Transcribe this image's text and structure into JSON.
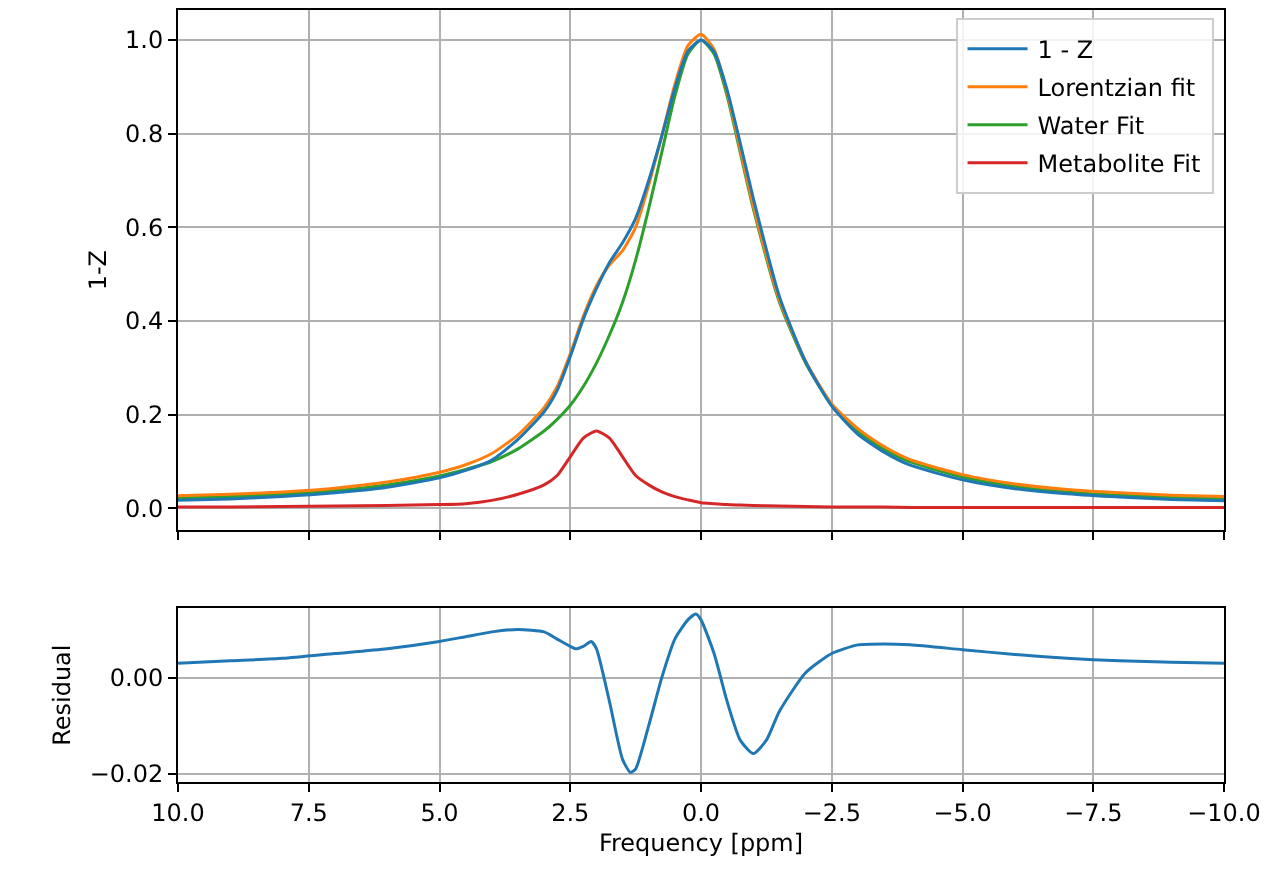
{
  "chart_data": [
    {
      "type": "line",
      "ylabel": "1-Z",
      "x": [
        10,
        9,
        8,
        7,
        6,
        5,
        4.5,
        4,
        3.5,
        3,
        2.75,
        2.5,
        2.25,
        2,
        1.75,
        1.5,
        1.25,
        1,
        0.75,
        0.5,
        0.25,
        0,
        -0.25,
        -0.5,
        -0.75,
        -1,
        -1.5,
        -2,
        -2.5,
        -3,
        -3.5,
        -4,
        -5,
        -6,
        -7,
        -8,
        -9,
        -10
      ],
      "series": [
        {
          "name": "1 - Z",
          "color": "#1f77b4",
          "values": [
            0.017,
            0.02,
            0.025,
            0.033,
            0.045,
            0.065,
            0.081,
            0.103,
            0.147,
            0.206,
            0.252,
            0.324,
            0.404,
            0.469,
            0.525,
            0.567,
            0.619,
            0.7,
            0.795,
            0.897,
            0.976,
            1.0,
            0.975,
            0.893,
            0.78,
            0.662,
            0.452,
            0.313,
            0.218,
            0.158,
            0.12,
            0.092,
            0.061,
            0.042,
            0.031,
            0.024,
            0.019,
            0.016
          ]
        },
        {
          "name": "Lorentzian fit",
          "color": "#ff7f0e",
          "values": [
            0.027,
            0.03,
            0.035,
            0.043,
            0.056,
            0.077,
            0.093,
            0.117,
            0.157,
            0.215,
            0.26,
            0.33,
            0.41,
            0.475,
            0.52,
            0.55,
            0.6,
            0.69,
            0.795,
            0.905,
            0.988,
            1.012,
            0.98,
            0.888,
            0.767,
            0.646,
            0.445,
            0.314,
            0.223,
            0.17,
            0.132,
            0.104,
            0.072,
            0.052,
            0.04,
            0.033,
            0.028,
            0.025
          ]
        },
        {
          "name": "Water Fit",
          "color": "#2ca02c",
          "values": [
            0.022,
            0.025,
            0.03,
            0.038,
            0.05,
            0.069,
            0.083,
            0.1,
            0.127,
            0.165,
            0.19,
            0.22,
            0.26,
            0.31,
            0.37,
            0.44,
            0.53,
            0.64,
            0.76,
            0.88,
            0.97,
            1.0,
            0.97,
            0.88,
            0.76,
            0.64,
            0.44,
            0.31,
            0.22,
            0.164,
            0.126,
            0.099,
            0.067,
            0.047,
            0.035,
            0.028,
            0.024,
            0.021
          ]
        },
        {
          "name": "Metabolite Fit",
          "color": "#d62728",
          "values": [
            0.003,
            0.003,
            0.004,
            0.005,
            0.006,
            0.008,
            0.01,
            0.017,
            0.03,
            0.05,
            0.07,
            0.11,
            0.15,
            0.165,
            0.15,
            0.11,
            0.07,
            0.05,
            0.035,
            0.025,
            0.018,
            0.012,
            0.01,
            0.008,
            0.007,
            0.006,
            0.005,
            0.004,
            0.003,
            0.003,
            0.003,
            0.002,
            0.002,
            0.002,
            0.002,
            0.002,
            0.002,
            0.002
          ]
        }
      ],
      "xlim": [
        10,
        -10
      ],
      "xticks": [
        {
          "value": 10,
          "label": null
        },
        {
          "value": 7.5,
          "label": null
        },
        {
          "value": 5,
          "label": null
        },
        {
          "value": 2.5,
          "label": null
        },
        {
          "value": 0,
          "label": null
        },
        {
          "value": -2.5,
          "label": null
        },
        {
          "value": -5,
          "label": null
        },
        {
          "value": -7.5,
          "label": null
        },
        {
          "value": -10,
          "label": null
        }
      ],
      "ylim": [
        -0.047,
        1.064
      ],
      "yticks": [
        {
          "value": 0,
          "label": "0.0"
        },
        {
          "value": 0.2,
          "label": "0.2"
        },
        {
          "value": 0.4,
          "label": "0.4"
        },
        {
          "value": 0.6,
          "label": "0.6"
        },
        {
          "value": 0.8,
          "label": "0.8"
        },
        {
          "value": 1,
          "label": "1.0"
        }
      ],
      "grid": true,
      "legend": "top right",
      "tick_labels": "y"
    },
    {
      "type": "line",
      "ylabel": "Residual",
      "xlabel": "Frequency [ppm]",
      "x": [
        10,
        9,
        8,
        7,
        6,
        5,
        4.5,
        4,
        3.5,
        3,
        2.75,
        2.5,
        2.4,
        2.25,
        2.1,
        2,
        1.75,
        1.5,
        1.35,
        1.25,
        1,
        0.75,
        0.5,
        0.25,
        0.1,
        0,
        -0.25,
        -0.5,
        -0.75,
        -1,
        -1.25,
        -1.5,
        -2,
        -2.5,
        -3,
        -3.5,
        -4,
        -5,
        -6,
        -7,
        -8,
        -9,
        -10
      ],
      "series": [
        {
          "color": "#1f77b4",
          "values": [
            0.003,
            0.0035,
            0.004,
            0.005,
            0.006,
            0.0075,
            0.0085,
            0.0095,
            0.01,
            0.0095,
            0.008,
            0.0065,
            0.006,
            0.0065,
            0.0075,
            0.006,
            -0.005,
            -0.017,
            -0.0197,
            -0.019,
            -0.01,
            0.0,
            0.008,
            0.012,
            0.0132,
            0.012,
            0.005,
            -0.005,
            -0.013,
            -0.0158,
            -0.013,
            -0.007,
            0.001,
            0.005,
            0.0068,
            0.007,
            0.0068,
            0.0058,
            0.0048,
            0.004,
            0.0035,
            0.0032,
            0.003
          ]
        }
      ],
      "xlim": [
        10,
        -10
      ],
      "xticks": [
        {
          "value": 10,
          "label": "10.0"
        },
        {
          "value": 7.5,
          "label": "7.5"
        },
        {
          "value": 5,
          "label": "5.0"
        },
        {
          "value": 2.5,
          "label": "2.5"
        },
        {
          "value": 0,
          "label": "0.0"
        },
        {
          "value": -2.5,
          "label": "−2.5"
        },
        {
          "value": -5,
          "label": "−5.0"
        },
        {
          "value": -7.5,
          "label": "−7.5"
        },
        {
          "value": -10,
          "label": "−10.0"
        }
      ],
      "ylim": [
        -0.0217,
        0.0144
      ],
      "yticks": [
        {
          "value": -0.02,
          "label": "−0.02"
        },
        {
          "value": 0,
          "label": "0.00"
        }
      ],
      "grid": true
    }
  ]
}
